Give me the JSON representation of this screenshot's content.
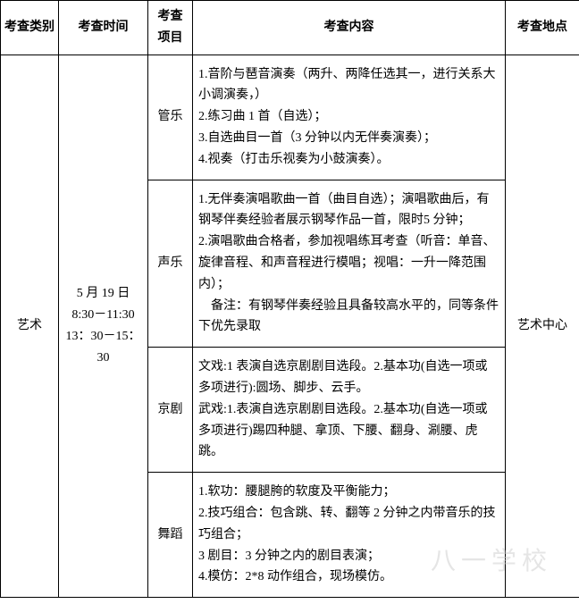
{
  "headers": {
    "category": "考查类别",
    "time": "考查时间",
    "item": "考查项目",
    "content": "考查内容",
    "location": "考查地点"
  },
  "rows": {
    "category": "艺术",
    "time": "5 月 19 日\n8:30－11:30\n13：30－15：30",
    "location": "艺术中心",
    "items": [
      {
        "name": "管乐",
        "content": "1.音阶与琶音演奏（两升、两降任选其一，进行关系大小调演奏，）\n2.练习曲 1 首（自选）；\n3.自选曲目一首（3 分钟以内无伴奏演奏）；\n4.视奏（打击乐视奏为小鼓演奏）。"
      },
      {
        "name": "声乐",
        "content": "1.无伴奏演唱歌曲一首（曲目自选）；演唱歌曲后，有钢琴伴奏经验者展示钢琴作品一首，限时5 分钟；\n2.演唱歌曲合格者，参加视唱练耳考查（听音：单音、旋律音程、和声音程进行模唱；视唱：一升一降范围内）；\n　备注：有钢琴伴奏经验且具备较高水平的，同等条件下优先录取"
      },
      {
        "name": "京剧",
        "content": "文戏:1 表演自选京剧剧目选段。2.基本功(自选一项或多项进行):圆场、脚步、云手。\n武戏:1.表演自选京剧剧目选段。2.基本功(自选一项或多项进行)踢四种腿、拿顶、下腰、翻身、涮腰、虎跳。"
      },
      {
        "name": "舞蹈",
        "content": "1.软功：腰腿胯的软度及平衡能力；\n2.技巧组合：包含跳、转、翻等 2 分钟之内带音乐的技巧组合；\n3 剧目：3 分钟之内的剧目表演；\n4.模仿：2*8 动作组合，现场模仿。"
      }
    ]
  },
  "watermark": "八一学校",
  "colwidths": {
    "c0": 65,
    "c1": 100,
    "c2": 50,
    "c3": 350,
    "c4": 83
  }
}
